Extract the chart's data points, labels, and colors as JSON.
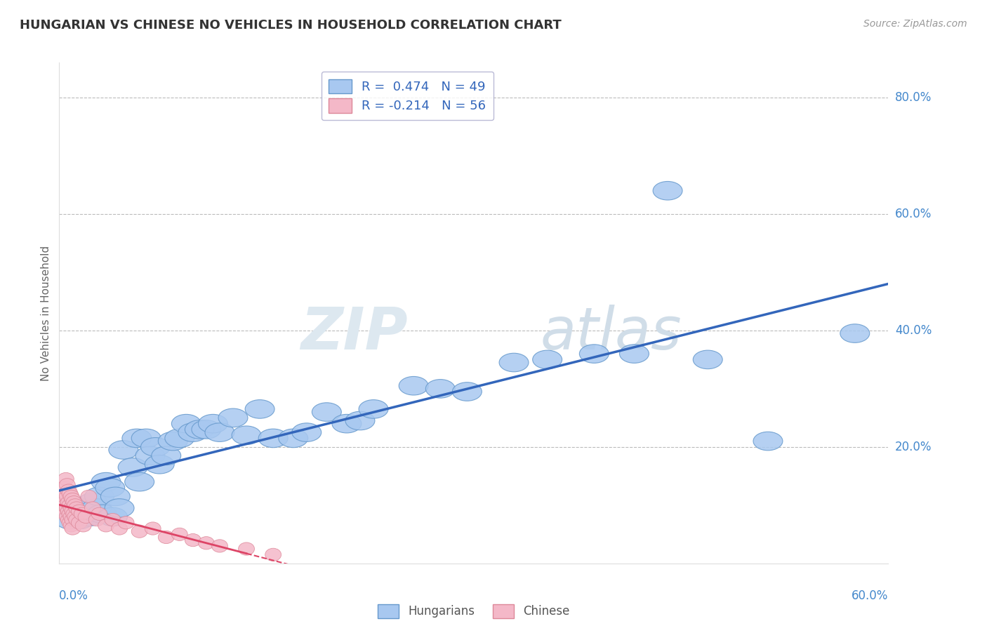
{
  "title": "HUNGARIAN VS CHINESE NO VEHICLES IN HOUSEHOLD CORRELATION CHART",
  "source": "Source: ZipAtlas.com",
  "ylabel": "No Vehicles in Household",
  "xlim": [
    0.0,
    0.62
  ],
  "ylim": [
    0.0,
    0.86
  ],
  "blue_color": "#a8c8f0",
  "pink_color": "#f4b8c8",
  "blue_edge": "#6699cc",
  "pink_edge": "#dd8899",
  "blue_line_color": "#3366bb",
  "pink_line_color": "#dd4466",
  "blue_scatter": [
    [
      0.008,
      0.075
    ],
    [
      0.012,
      0.085
    ],
    [
      0.015,
      0.075
    ],
    [
      0.018,
      0.095
    ],
    [
      0.02,
      0.09
    ],
    [
      0.022,
      0.08
    ],
    [
      0.025,
      0.105
    ],
    [
      0.028,
      0.095
    ],
    [
      0.03,
      0.115
    ],
    [
      0.032,
      0.085
    ],
    [
      0.035,
      0.14
    ],
    [
      0.038,
      0.13
    ],
    [
      0.04,
      0.08
    ],
    [
      0.042,
      0.115
    ],
    [
      0.045,
      0.095
    ],
    [
      0.048,
      0.195
    ],
    [
      0.055,
      0.165
    ],
    [
      0.058,
      0.215
    ],
    [
      0.06,
      0.14
    ],
    [
      0.065,
      0.215
    ],
    [
      0.068,
      0.185
    ],
    [
      0.072,
      0.2
    ],
    [
      0.075,
      0.17
    ],
    [
      0.08,
      0.185
    ],
    [
      0.085,
      0.21
    ],
    [
      0.09,
      0.215
    ],
    [
      0.095,
      0.24
    ],
    [
      0.1,
      0.225
    ],
    [
      0.105,
      0.23
    ],
    [
      0.11,
      0.23
    ],
    [
      0.115,
      0.24
    ],
    [
      0.12,
      0.225
    ],
    [
      0.13,
      0.25
    ],
    [
      0.14,
      0.22
    ],
    [
      0.15,
      0.265
    ],
    [
      0.16,
      0.215
    ],
    [
      0.175,
      0.215
    ],
    [
      0.185,
      0.225
    ],
    [
      0.2,
      0.26
    ],
    [
      0.215,
      0.24
    ],
    [
      0.225,
      0.245
    ],
    [
      0.235,
      0.265
    ],
    [
      0.265,
      0.305
    ],
    [
      0.285,
      0.3
    ],
    [
      0.305,
      0.295
    ],
    [
      0.34,
      0.345
    ],
    [
      0.365,
      0.35
    ],
    [
      0.4,
      0.36
    ],
    [
      0.43,
      0.36
    ],
    [
      0.455,
      0.64
    ],
    [
      0.485,
      0.35
    ],
    [
      0.53,
      0.21
    ],
    [
      0.595,
      0.395
    ]
  ],
  "pink_scatter": [
    [
      0.003,
      0.115
    ],
    [
      0.003,
      0.095
    ],
    [
      0.004,
      0.13
    ],
    [
      0.004,
      0.105
    ],
    [
      0.005,
      0.145
    ],
    [
      0.005,
      0.12
    ],
    [
      0.005,
      0.1
    ],
    [
      0.005,
      0.085
    ],
    [
      0.006,
      0.135
    ],
    [
      0.006,
      0.115
    ],
    [
      0.006,
      0.095
    ],
    [
      0.006,
      0.08
    ],
    [
      0.007,
      0.125
    ],
    [
      0.007,
      0.105
    ],
    [
      0.007,
      0.09
    ],
    [
      0.007,
      0.075
    ],
    [
      0.008,
      0.12
    ],
    [
      0.008,
      0.1
    ],
    [
      0.008,
      0.085
    ],
    [
      0.008,
      0.07
    ],
    [
      0.009,
      0.115
    ],
    [
      0.009,
      0.095
    ],
    [
      0.009,
      0.08
    ],
    [
      0.009,
      0.065
    ],
    [
      0.01,
      0.11
    ],
    [
      0.01,
      0.09
    ],
    [
      0.01,
      0.075
    ],
    [
      0.01,
      0.06
    ],
    [
      0.011,
      0.105
    ],
    [
      0.011,
      0.085
    ],
    [
      0.012,
      0.1
    ],
    [
      0.012,
      0.08
    ],
    [
      0.013,
      0.095
    ],
    [
      0.013,
      0.075
    ],
    [
      0.015,
      0.09
    ],
    [
      0.015,
      0.07
    ],
    [
      0.017,
      0.085
    ],
    [
      0.018,
      0.065
    ],
    [
      0.02,
      0.08
    ],
    [
      0.022,
      0.115
    ],
    [
      0.025,
      0.095
    ],
    [
      0.028,
      0.075
    ],
    [
      0.03,
      0.085
    ],
    [
      0.035,
      0.065
    ],
    [
      0.04,
      0.075
    ],
    [
      0.045,
      0.06
    ],
    [
      0.05,
      0.07
    ],
    [
      0.06,
      0.055
    ],
    [
      0.07,
      0.06
    ],
    [
      0.08,
      0.045
    ],
    [
      0.09,
      0.05
    ],
    [
      0.1,
      0.04
    ],
    [
      0.11,
      0.035
    ],
    [
      0.12,
      0.03
    ],
    [
      0.14,
      0.025
    ],
    [
      0.16,
      0.015
    ]
  ],
  "watermark_zip": "ZIP",
  "watermark_atlas": "atlas",
  "background_color": "#ffffff",
  "grid_color": "#bbbbbb"
}
